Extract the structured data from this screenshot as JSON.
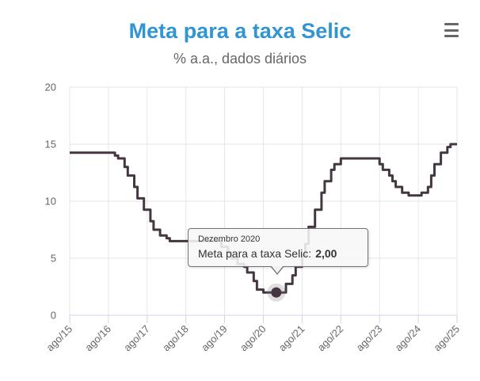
{
  "header": {
    "title": "Meta para a taxa Selic",
    "subtitle": "% a.a., dados diários",
    "menu_icon": "hamburger-icon"
  },
  "colors": {
    "title": "#3095d2",
    "subtitle": "#666666",
    "series": "#453741",
    "grid_line": "#e6e6e6",
    "axis_line": "#ccd6eb",
    "axis_label": "#666666",
    "tooltip_border": "#77707a",
    "halo": "#808080"
  },
  "tooltip": {
    "date": "Dezembro 2020",
    "series_label": "Meta para a taxa Selic:",
    "value": "2,00",
    "point": {
      "month_index": 64,
      "value": 2.0
    }
  },
  "chart_data": {
    "type": "line",
    "step": true,
    "title": "Meta para a taxa Selic",
    "subtitle": "% a.a., dados diários",
    "xlabel": "",
    "ylabel": "",
    "x_tick_labels": [
      "ago/15",
      "ago/16",
      "ago/17",
      "ago/18",
      "ago/19",
      "ago/20",
      "ago/21",
      "ago/22",
      "ago/23",
      "ago/24",
      "ago/25"
    ],
    "x_months_per_tick": 12,
    "x_range_months": [
      0,
      120
    ],
    "ylim": [
      0,
      20
    ],
    "y_ticks": [
      0,
      5,
      10,
      15,
      20
    ],
    "grid": true,
    "legend": false,
    "series": [
      {
        "name": "Meta para a taxa Selic",
        "unit": "% a.a.",
        "change_points_month_value": [
          [
            0,
            14.25
          ],
          [
            14,
            14.0
          ],
          [
            15,
            13.75
          ],
          [
            17,
            13.0
          ],
          [
            18,
            12.25
          ],
          [
            20,
            11.25
          ],
          [
            21,
            10.25
          ],
          [
            23,
            9.25
          ],
          [
            25,
            8.25
          ],
          [
            26,
            7.5
          ],
          [
            28,
            7.0
          ],
          [
            30,
            6.75
          ],
          [
            31,
            6.5
          ],
          [
            47,
            6.0
          ],
          [
            49,
            5.5
          ],
          [
            50,
            5.0
          ],
          [
            52,
            4.5
          ],
          [
            54,
            4.25
          ],
          [
            55,
            3.75
          ],
          [
            57,
            3.0
          ],
          [
            58,
            2.25
          ],
          [
            60,
            2.0
          ],
          [
            67,
            2.75
          ],
          [
            69,
            3.5
          ],
          [
            70,
            4.25
          ],
          [
            72,
            5.25
          ],
          [
            73,
            6.25
          ],
          [
            74,
            7.75
          ],
          [
            76,
            9.25
          ],
          [
            78,
            10.75
          ],
          [
            79,
            11.75
          ],
          [
            81,
            12.75
          ],
          [
            82,
            13.25
          ],
          [
            84,
            13.75
          ],
          [
            96,
            13.25
          ],
          [
            97,
            12.75
          ],
          [
            99,
            12.25
          ],
          [
            100,
            11.75
          ],
          [
            101,
            11.25
          ],
          [
            103,
            10.75
          ],
          [
            105,
            10.5
          ],
          [
            109,
            10.75
          ],
          [
            111,
            11.25
          ],
          [
            112,
            12.25
          ],
          [
            113,
            13.25
          ],
          [
            115,
            14.25
          ],
          [
            117,
            14.75
          ],
          [
            118,
            15.0
          ]
        ],
        "end_month": 120
      }
    ]
  }
}
